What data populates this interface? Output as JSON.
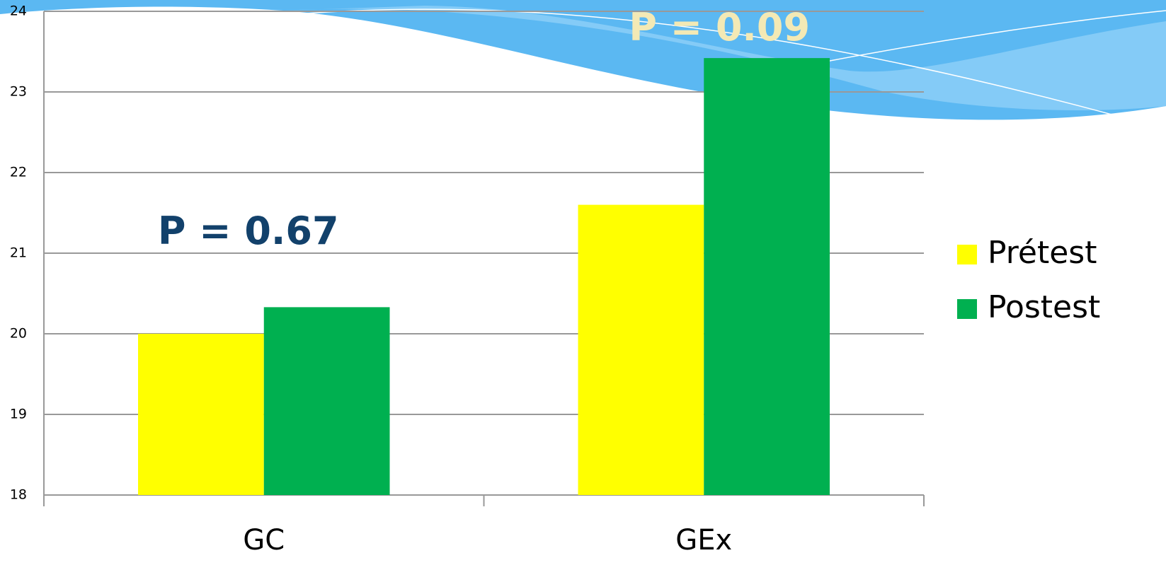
{
  "chart_data": {
    "type": "bar",
    "categories": [
      "GC",
      "GEx"
    ],
    "series": [
      {
        "name": "Prétest",
        "color": "#ffff00",
        "values": [
          20.0,
          21.6
        ]
      },
      {
        "name": "Postest",
        "color": "#00b050",
        "values": [
          20.33,
          23.42
        ]
      }
    ],
    "ylim": [
      18,
      24
    ],
    "yticks": [
      18,
      19,
      20,
      21,
      22,
      23,
      24
    ],
    "grid": true,
    "legend": "right",
    "annotations": [
      {
        "text": "P = 0.67",
        "color": "#12416b"
      },
      {
        "text": "P = 0.09",
        "color": "#f3e9b5"
      }
    ]
  }
}
